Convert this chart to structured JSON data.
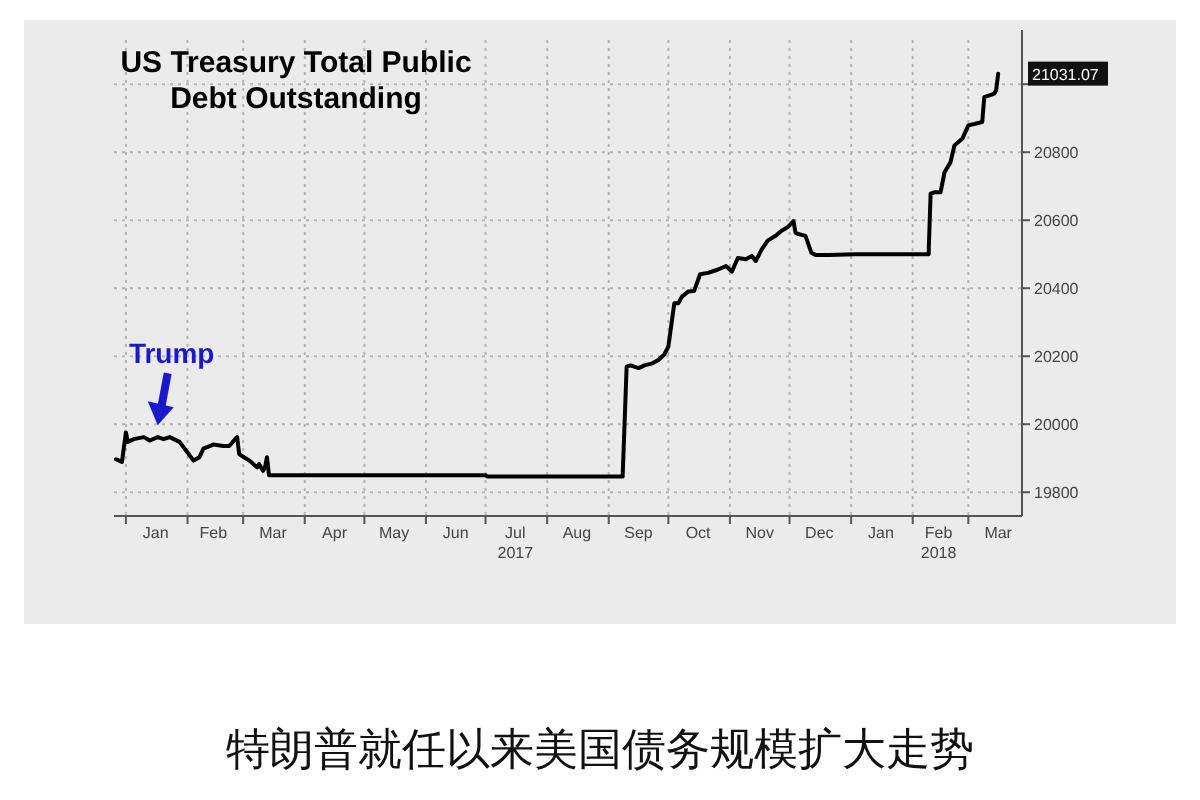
{
  "chart_data": {
    "type": "line",
    "title": "US Treasury Total Public Debt Outstanding",
    "x": [
      "2016-12-27",
      "2016-12-30",
      "2017-01-01",
      "2017-01-02",
      "2017-01-05",
      "2017-01-10",
      "2017-01-13",
      "2017-01-17",
      "2017-01-20",
      "2017-01-23",
      "2017-01-28",
      "2017-02-01",
      "2017-02-04",
      "2017-02-07",
      "2017-02-09",
      "2017-02-14",
      "2017-02-19",
      "2017-02-22",
      "2017-02-25",
      "2017-02-26",
      "2017-02-27",
      "2017-03-03",
      "2017-03-05",
      "2017-03-08",
      "2017-03-09",
      "2017-03-11",
      "2017-03-12",
      "2017-03-13",
      "2017-03-14",
      "2017-07-01",
      "2017-07-02",
      "2017-09-08",
      "2017-09-10",
      "2017-09-12",
      "2017-09-16",
      "2017-09-19",
      "2017-09-23",
      "2017-09-26",
      "2017-09-29",
      "2017-10-01",
      "2017-10-04",
      "2017-10-06",
      "2017-10-08",
      "2017-10-11",
      "2017-10-14",
      "2017-10-17",
      "2017-10-21",
      "2017-10-26",
      "2017-10-30",
      "2017-11-02",
      "2017-11-05",
      "2017-11-09",
      "2017-11-12",
      "2017-11-14",
      "2017-11-17",
      "2017-11-20",
      "2017-11-24",
      "2017-11-27",
      "2017-11-30",
      "2017-12-03",
      "2017-12-04",
      "2017-12-05",
      "2017-12-09",
      "2017-12-12",
      "2017-12-14",
      "2017-12-21",
      "2018-01-03",
      "2018-02-09",
      "2018-02-10",
      "2018-02-12",
      "2018-02-15",
      "2018-02-17",
      "2018-02-20",
      "2018-02-22",
      "2018-02-26",
      "2018-03-01",
      "2018-03-04",
      "2018-03-08",
      "2018-03-09",
      "2018-03-12",
      "2018-03-14",
      "2018-03-15",
      "2018-03-16"
    ],
    "series": [
      {
        "color": "#000000",
        "values": [
          19897,
          19889,
          19976,
          19948,
          19956,
          19962,
          19952,
          19962,
          19956,
          19962,
          19948,
          19917,
          19893,
          19903,
          19928,
          19940,
          19936,
          19936,
          19956,
          19962,
          19912,
          19897,
          19889,
          19873,
          19883,
          19863,
          19873,
          19903,
          19850,
          19850,
          19846,
          19846,
          20169,
          20173,
          20165,
          20173,
          20179,
          20189,
          20205,
          20228,
          20356,
          20356,
          20376,
          20390,
          20392,
          20441,
          20445,
          20455,
          20465,
          20449,
          20489,
          20485,
          20495,
          20480,
          20514,
          20540,
          20554,
          20569,
          20579,
          20597,
          20563,
          20560,
          20554,
          20504,
          20498,
          20498,
          20500,
          20500,
          20678,
          20682,
          20682,
          20741,
          20770,
          20820,
          20840,
          20879,
          20883,
          20889,
          20962,
          20968,
          20972,
          20982,
          21031.07
        ]
      }
    ],
    "xlim": [
      "2016-12-26",
      "2018-03-28"
    ],
    "xticks": [
      {
        "value": "2017-01-01",
        "label": null
      },
      {
        "value": "2017-01-16",
        "label": "Jan"
      },
      {
        "value": "2017-02-01",
        "label": null
      },
      {
        "value": "2017-02-14",
        "label": "Feb"
      },
      {
        "value": "2017-03-01",
        "label": null
      },
      {
        "value": "2017-03-16",
        "label": "Mar"
      },
      {
        "value": "2017-04-01",
        "label": null
      },
      {
        "value": "2017-04-16",
        "label": "Apr"
      },
      {
        "value": "2017-05-01",
        "label": null
      },
      {
        "value": "2017-05-16",
        "label": "May"
      },
      {
        "value": "2017-06-01",
        "label": null
      },
      {
        "value": "2017-06-16",
        "label": "Jun"
      },
      {
        "value": "2017-07-01",
        "label": null
      },
      {
        "value": "2017-07-16",
        "label": "Jul\n2017"
      },
      {
        "value": "2017-08-01",
        "label": null
      },
      {
        "value": "2017-08-16",
        "label": "Aug"
      },
      {
        "value": "2017-09-01",
        "label": null
      },
      {
        "value": "2017-09-16",
        "label": "Sep"
      },
      {
        "value": "2017-10-01",
        "label": null
      },
      {
        "value": "2017-10-16",
        "label": "Oct"
      },
      {
        "value": "2017-11-01",
        "label": null
      },
      {
        "value": "2017-11-16",
        "label": "Nov"
      },
      {
        "value": "2017-12-01",
        "label": null
      },
      {
        "value": "2017-12-16",
        "label": "Dec"
      },
      {
        "value": "2018-01-01",
        "label": null
      },
      {
        "value": "2018-01-16",
        "label": "Jan"
      },
      {
        "value": "2018-02-01",
        "label": null
      },
      {
        "value": "2018-02-14",
        "label": "Feb\n2018"
      },
      {
        "value": "2018-03-01",
        "label": null
      },
      {
        "value": "2018-03-16",
        "label": "Mar"
      }
    ],
    "ylim": [
      19730,
      21130
    ],
    "yticks": [
      19800,
      20000,
      20200,
      20400,
      20600,
      20800,
      {
        "value": 21000,
        "label": null
      }
    ],
    "grid": true,
    "line_style": "solid",
    "annotations": [
      {
        "text": "Trump",
        "x": "2017-01-18",
        "y": 19985
      },
      {
        "text": "21031.07",
        "x": "2018-03-16",
        "y": 21031.07
      },
      "特朗普就任以来美国债务规模扩大走势"
    ]
  }
}
